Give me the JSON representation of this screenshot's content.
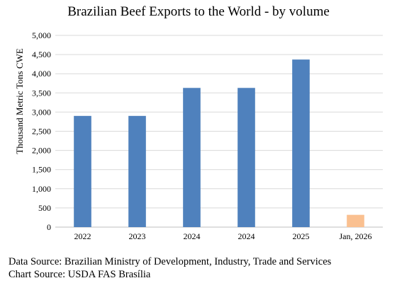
{
  "chart_data": {
    "type": "bar",
    "title": "Brazilian Beef Exports to the World - by volume",
    "ylabel": "Thousand Metric Tons CWE",
    "xlabel": "",
    "categories": [
      "2022",
      "2023",
      "2024",
      "2024",
      "2025",
      "Jan, 2026"
    ],
    "values": [
      2900,
      2900,
      3630,
      3630,
      4370,
      320
    ],
    "bar_colors": [
      "#4f81bd",
      "#4f81bd",
      "#4f81bd",
      "#4f81bd",
      "#4f81bd",
      "#fac090"
    ],
    "ylim": [
      0,
      5000
    ],
    "yticks": [
      0,
      500,
      1000,
      1500,
      2000,
      2500,
      3000,
      3500,
      4000,
      4500,
      5000
    ],
    "ytick_labels": [
      "0",
      "500",
      "1,000",
      "1,500",
      "2,000",
      "2,500",
      "3,000",
      "3,500",
      "4,000",
      "4,500",
      "5,000"
    ],
    "grid": "horizontal",
    "legend": "none"
  },
  "footer": {
    "data_source": "Data Source: Brazilian Ministry of Development, Industry, Trade and Services",
    "chart_source": "Chart Source: USDA FAS Brasília"
  }
}
